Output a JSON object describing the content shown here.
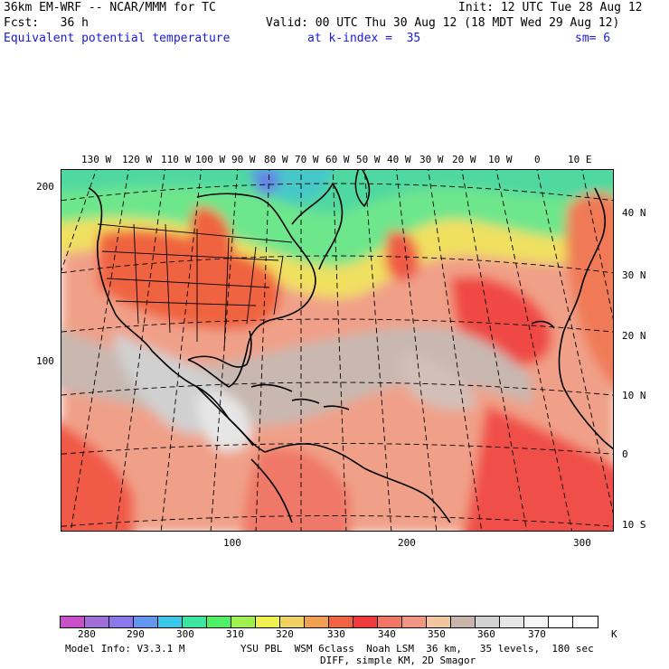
{
  "header": {
    "model": "36km EM-WRF -- NCAR/MMM for TC",
    "init": "Init: 12 UTC Tue 28 Aug 12",
    "fcst": "Fcst:   36 h",
    "valid": "Valid: 00 UTC Thu 30 Aug 12 (18 MDT Wed 29 Aug 12)",
    "field": "Equivalent potential temperature",
    "level": "at k-index =  35",
    "smooth": "sm= 6"
  },
  "axes": {
    "lon_labels": [
      "130 W",
      "120 W",
      "110 W",
      "100 W",
      "90 W",
      "80 W",
      "70 W",
      "60 W",
      "50 W",
      "40 W",
      "30 W",
      "20 W",
      "10 W",
      "0",
      "10 E"
    ],
    "lat_labels": [
      "40 N",
      "30 N",
      "20 N",
      "10 N",
      "0",
      "10 S"
    ],
    "grid_y_labels": [
      "200",
      "100"
    ],
    "grid_x_labels": [
      "100",
      "200",
      "300"
    ]
  },
  "colorbar": {
    "colors": [
      "#c850c8",
      "#a070d8",
      "#8c78e8",
      "#6496f0",
      "#3cc8e8",
      "#3ce6a0",
      "#50f064",
      "#a0f050",
      "#f0f050",
      "#f0d264",
      "#f0a050",
      "#f06446",
      "#f03c3c",
      "#f07864",
      "#f09682",
      "#f0c8a0",
      "#c8b4aa",
      "#d2d2d2",
      "#e6e6e6",
      "#f5f5f5",
      "#ffffff",
      "#ffffff"
    ],
    "labels": [
      "280",
      "290",
      "300",
      "310",
      "320",
      "330",
      "340",
      "350",
      "360",
      "370"
    ],
    "unit": "K"
  },
  "footer": {
    "line1a": "Model Info: V3.3.1 M",
    "line1b": "YSU PBL  WSM 6class  Noah LSM  36 km,   35 levels,  180 sec",
    "line2": "DIFF, simple KM, 2D Smagor"
  }
}
